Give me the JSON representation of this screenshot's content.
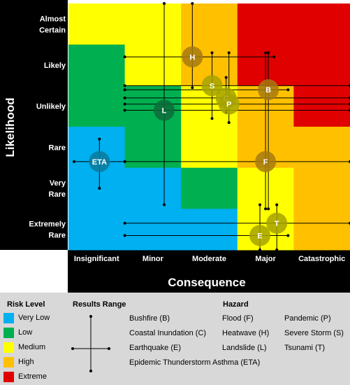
{
  "chart_data": {
    "type": "scatter",
    "title": "",
    "xlabel": "Consequence",
    "ylabel": "Likelihood",
    "x_categories": [
      "Insignificant",
      "Minor",
      "Moderate",
      "Major",
      "Catastrophic"
    ],
    "y_categories": [
      {
        "lines": [
          "Almost",
          "Certain"
        ]
      },
      {
        "lines": [
          "Likely"
        ]
      },
      {
        "lines": [
          "Unlikely"
        ]
      },
      {
        "lines": [
          "Rare"
        ]
      },
      {
        "lines": [
          "Very",
          "Rare"
        ]
      },
      {
        "lines": [
          "Extremely",
          "Rare"
        ]
      }
    ],
    "risk_matrix": [
      [
        "medium",
        "medium",
        "high",
        "extreme",
        "extreme"
      ],
      [
        "low",
        "medium",
        "high",
        "extreme",
        "extreme"
      ],
      [
        "low",
        "low",
        "medium",
        "high",
        "extreme"
      ],
      [
        "very_low",
        "low",
        "medium",
        "high",
        "high"
      ],
      [
        "very_low",
        "very_low",
        "low",
        "medium",
        "high"
      ],
      [
        "very_low",
        "very_low",
        "very_low",
        "medium",
        "high"
      ]
    ],
    "risk_colors": {
      "very_low": "#00b0f0",
      "low": "#00b050",
      "medium": "#ffff00",
      "high": "#ffc000",
      "extreme": "#e00000"
    },
    "hazards": [
      {
        "label": "H",
        "x": 2.2,
        "y": 1.3,
        "x_range": [
          1.0,
          3.65
        ],
        "y_range": [
          0.0,
          2.05
        ]
      },
      {
        "label": "S",
        "x": 2.55,
        "y": 2.0,
        "x_range": [
          1.0,
          5.0
        ],
        "y_range": [
          1.2,
          2.8
        ]
      },
      {
        "label": "B",
        "x": 3.55,
        "y": 2.1,
        "x_range": [
          1.0,
          3.9
        ],
        "y_range": [
          1.2,
          5.0
        ]
      },
      {
        "label": "C",
        "x": 2.8,
        "y": 2.3,
        "x_range": [
          1.0,
          5.0
        ],
        "y_range": [
          1.8,
          2.65
        ]
      },
      {
        "label": "P",
        "x": 2.85,
        "y": 2.45,
        "x_range": [
          1.0,
          5.0
        ],
        "y_range": [
          1.2,
          2.9
        ]
      },
      {
        "label": "L",
        "x": 1.7,
        "y": 2.6,
        "x_range": [
          1.0,
          5.0
        ],
        "y_range": [
          0.0,
          4.9
        ]
      },
      {
        "label": "ETA",
        "x": 0.55,
        "y": 3.85,
        "x_range": [
          0.1,
          1.0
        ],
        "y_range": [
          3.3,
          4.5
        ]
      },
      {
        "label": "F",
        "x": 3.5,
        "y": 3.85,
        "x_range": [
          1.0,
          5.0
        ],
        "y_range": [
          1.2,
          5.0
        ]
      },
      {
        "label": "T",
        "x": 3.7,
        "y": 5.35,
        "x_range": [
          1.0,
          5.0
        ],
        "y_range": [
          4.9,
          6.0
        ]
      },
      {
        "label": "E",
        "x": 3.4,
        "y": 5.65,
        "x_range": [
          1.0,
          3.9
        ],
        "y_range": [
          4.9,
          6.0
        ]
      }
    ]
  },
  "legend": {
    "risk_level_title": "Risk Level",
    "risk_levels": [
      {
        "label": "Very Low",
        "color": "#00b0f0"
      },
      {
        "label": "Low",
        "color": "#00b050"
      },
      {
        "label": "Medium",
        "color": "#ffff00"
      },
      {
        "label": "High",
        "color": "#ffc000"
      },
      {
        "label": "Extreme",
        "color": "#e00000"
      }
    ],
    "results_range_title": "Results Range",
    "hazard_title": "Hazard",
    "hazards": [
      "Bushfire (B)",
      "Coastal Inundation (C)",
      "Earthquake (E)",
      "Epidemic Thunderstorm Asthma (ETA)",
      "Flood (F)",
      "Heatwave (H)",
      "Landslide (L)",
      "Pandemic (P)",
      "Severe Storm (S)",
      "Tsunami (T)"
    ]
  }
}
